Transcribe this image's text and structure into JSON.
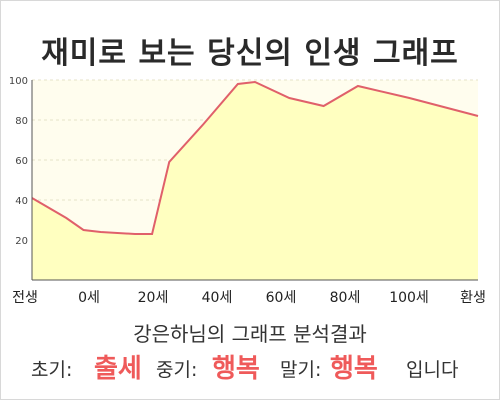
{
  "header": {
    "title": "재미로 보는 당신의 인생 그래프"
  },
  "colors": {
    "line": "#e0606a",
    "fill": "#ffffc0",
    "plot_bg": "#fffdee",
    "highlight": "#ef5a5a"
  },
  "chart_data": {
    "type": "area",
    "x_tick_labels": [
      "전생",
      "0세",
      "20세",
      "40세",
      "60세",
      "80세",
      "100세",
      "환생"
    ],
    "x": [
      -15,
      -5,
      0,
      5,
      15,
      20,
      25,
      35,
      45,
      50,
      60,
      70,
      80,
      95,
      115
    ],
    "values": [
      41,
      31,
      25,
      24,
      23,
      23,
      59,
      78,
      98,
      99,
      91,
      87,
      97,
      91,
      82
    ],
    "y_ticks": [
      20,
      40,
      60,
      80,
      100
    ],
    "ylim": [
      0,
      100
    ],
    "xlim": [
      -15,
      115
    ],
    "grid": true,
    "legend": "none"
  },
  "summary": {
    "subtitle": "강은하님의 그래프 분석결과",
    "early_label": "초기:",
    "early_value": "출세",
    "mid_label": "중기:",
    "mid_value": "행복",
    "late_label": "말기:",
    "late_value": "행복",
    "ending": "입니다"
  }
}
